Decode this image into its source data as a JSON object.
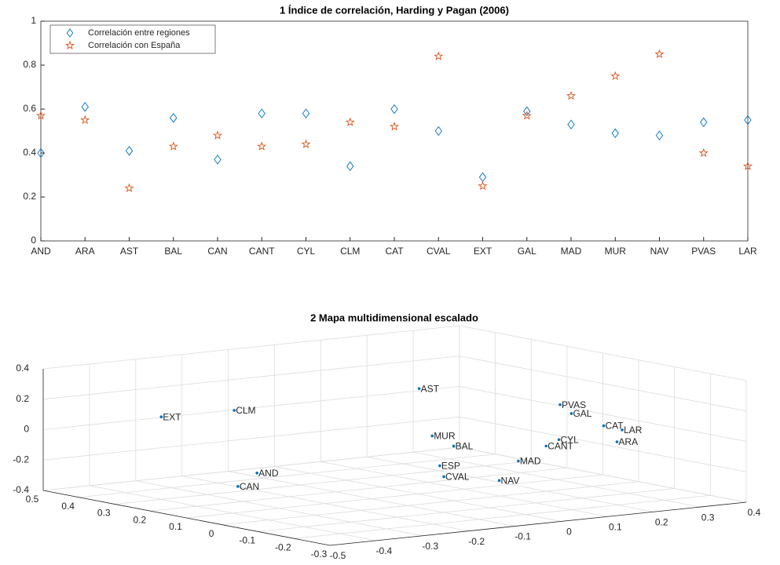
{
  "chart_data": [
    {
      "type": "scatter",
      "title": "1  Índice de correlación, Harding y Pagan (2006)",
      "categories": [
        "AND",
        "ARA",
        "AST",
        "BAL",
        "CAN",
        "CANT",
        "CYL",
        "CLM",
        "CAT",
        "CVAL",
        "EXT",
        "GAL",
        "MAD",
        "MUR",
        "NAV",
        "PVAS",
        "LAR"
      ],
      "series": [
        {
          "name": "Correlación entre regiones",
          "color": "#0072bd",
          "marker": "diamond",
          "values": [
            0.4,
            0.61,
            0.41,
            0.56,
            0.37,
            0.58,
            0.58,
            0.34,
            0.6,
            0.5,
            0.29,
            0.59,
            0.53,
            0.49,
            0.48,
            0.54,
            0.55
          ]
        },
        {
          "name": "Correlación con España",
          "color": "#d95319",
          "marker": "star",
          "values": [
            0.57,
            0.55,
            0.24,
            0.43,
            0.48,
            0.43,
            0.44,
            0.54,
            0.52,
            0.84,
            0.25,
            0.57,
            0.66,
            0.75,
            0.85,
            0.4,
            0.34
          ]
        }
      ],
      "ylim": [
        0,
        1
      ],
      "yticks": [
        0,
        0.2,
        0.4,
        0.6,
        0.8,
        1
      ],
      "legend": "northwest"
    },
    {
      "type": "scatter3d",
      "title": "2  Mapa multidimensional escalado",
      "color": "#0072bd",
      "labels": [
        "EXT",
        "CLM",
        "AST",
        "PVAS",
        "GAL",
        "CAT",
        "LAR",
        "ARA",
        "CYL",
        "CANT",
        "MUR",
        "BAL",
        "MAD",
        "ESP",
        "CVAL",
        "NAV",
        "AND",
        "CAN"
      ],
      "x": [
        -0.33,
        -0.18,
        0.15,
        0.23,
        0.27,
        0.27,
        0.31,
        0.26,
        0.15,
        0.13,
        0.0,
        0.0,
        0.07,
        -0.03,
        -0.06,
        -0.01,
        -0.34,
        -0.42
      ],
      "y": [
        0.39,
        0.38,
        0.29,
        0.0,
        0.02,
        -0.07,
        -0.07,
        -0.12,
        -0.1,
        -0.09,
        0.06,
        0.0,
        -0.09,
        0.0,
        -0.05,
        -0.14,
        0.11,
        0.06
      ],
      "z": [
        0.08,
        0.08,
        0.16,
        0.16,
        0.08,
        0.04,
        0.0,
        -0.04,
        0.0,
        -0.04,
        0.0,
        -0.04,
        -0.12,
        -0.16,
        -0.2,
        -0.2,
        -0.16,
        -0.2
      ],
      "xlim": [
        -0.5,
        0.4
      ],
      "xticks": [
        -0.5,
        -0.4,
        -0.3,
        -0.2,
        -0.1,
        0,
        0.1,
        0.2,
        0.3,
        0.4
      ],
      "ylim": [
        -0.3,
        0.5
      ],
      "yticks": [
        -0.3,
        -0.2,
        -0.1,
        0,
        0.1,
        0.2,
        0.3,
        0.4,
        0.5
      ],
      "zlim": [
        -0.4,
        0.4
      ],
      "zticks": [
        -0.4,
        -0.2,
        0,
        0.2,
        0.4
      ],
      "grid": true
    }
  ]
}
